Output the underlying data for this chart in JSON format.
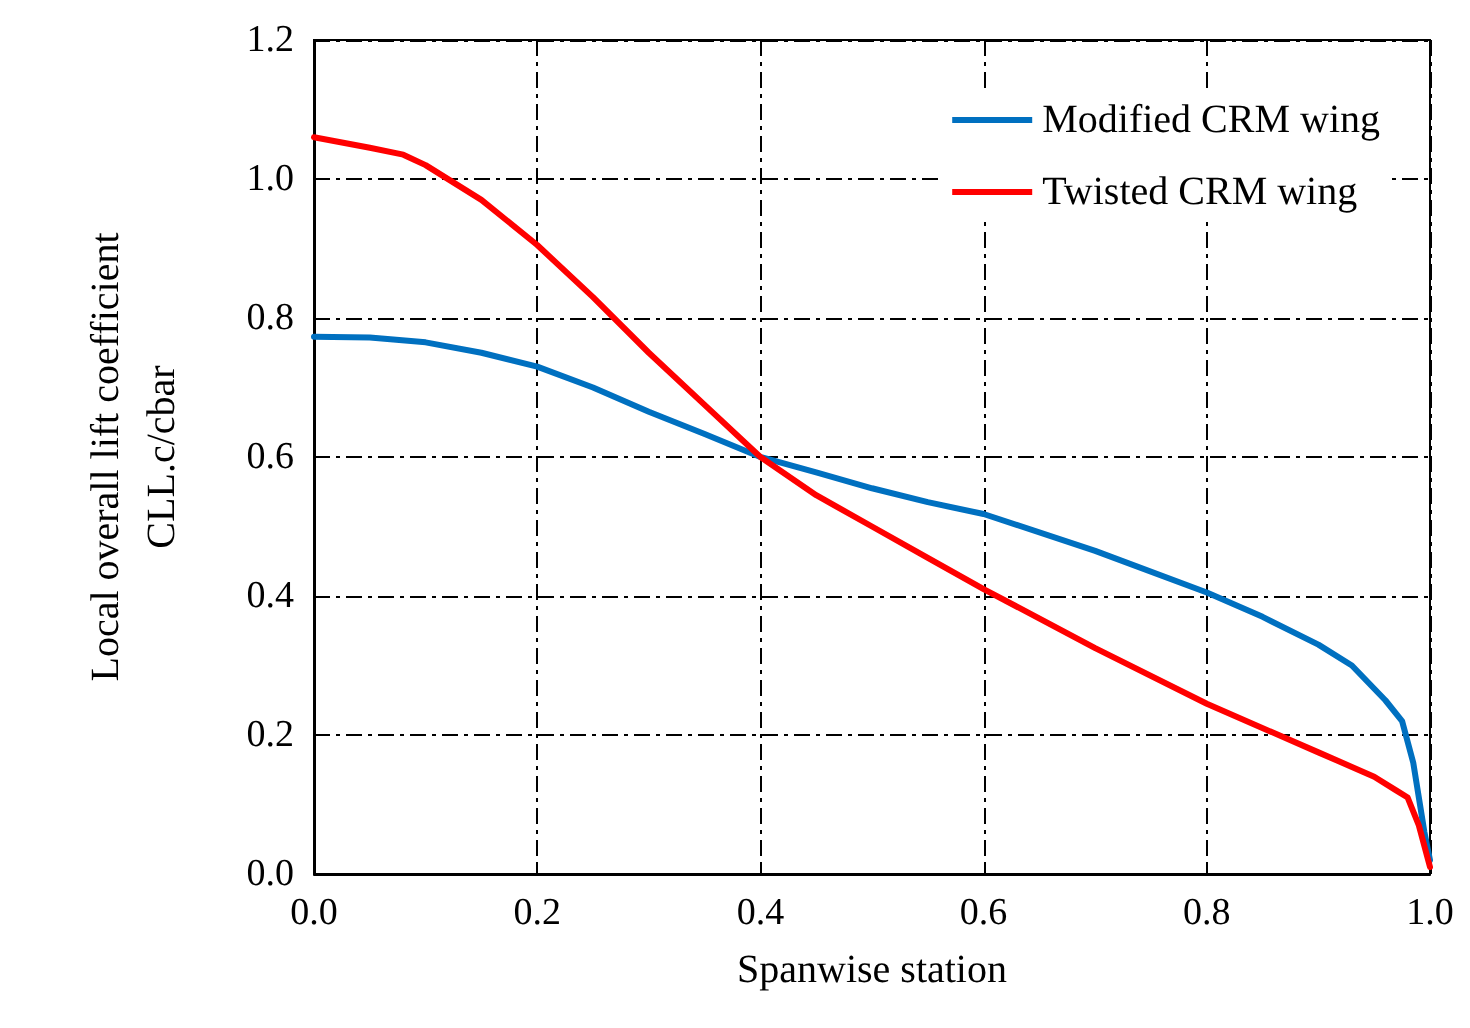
{
  "chart_data": {
    "type": "line",
    "xlabel": "Spanwise station",
    "ylabel": "Local overall lift coefficient\nCLL.c/cbar",
    "xlim": [
      0,
      1
    ],
    "ylim": [
      0,
      1.2
    ],
    "xticks": [
      {
        "value": 0,
        "label": "0.0"
      },
      0.2,
      0.4,
      0.6,
      0.8,
      {
        "value": 1,
        "label": "1.0"
      }
    ],
    "yticks": [
      {
        "value": 0,
        "label": "0.0"
      },
      0.2,
      0.4,
      0.6,
      0.8,
      {
        "value": 1,
        "label": "1.0"
      },
      1.2
    ],
    "grid": true,
    "legend": "top right",
    "marker": "none",
    "line_style": "solid",
    "series": [
      {
        "name": "Modified CRM wing",
        "color": "#0070c0",
        "x": [
          0,
          0.05,
          0.1,
          0.15,
          0.2,
          0.25,
          0.3,
          0.35,
          0.4,
          0.45,
          0.5,
          0.55,
          0.6,
          0.7,
          0.8,
          0.85,
          0.9,
          0.93,
          0.96,
          0.975,
          0.985,
          0.995,
          1
        ],
        "values": [
          0.773,
          0.772,
          0.765,
          0.75,
          0.73,
          0.7,
          0.665,
          0.633,
          0.6,
          0.578,
          0.555,
          0.535,
          0.518,
          0.465,
          0.405,
          0.37,
          0.33,
          0.3,
          0.25,
          0.22,
          0.16,
          0.06,
          0.02
        ]
      },
      {
        "name": "Twisted CRM wing",
        "color": "#ff0000",
        "x": [
          0,
          0.05,
          0.08,
          0.1,
          0.15,
          0.2,
          0.25,
          0.3,
          0.35,
          0.4,
          0.45,
          0.5,
          0.55,
          0.6,
          0.7,
          0.8,
          0.9,
          0.95,
          0.97,
          0.98,
          0.99,
          1
        ],
        "values": [
          1.06,
          1.045,
          1.035,
          1.02,
          0.97,
          0.905,
          0.83,
          0.75,
          0.675,
          0.6,
          0.545,
          0.5,
          0.455,
          0.41,
          0.325,
          0.245,
          0.175,
          0.14,
          0.12,
          0.11,
          0.07,
          0.01
        ]
      }
    ]
  }
}
